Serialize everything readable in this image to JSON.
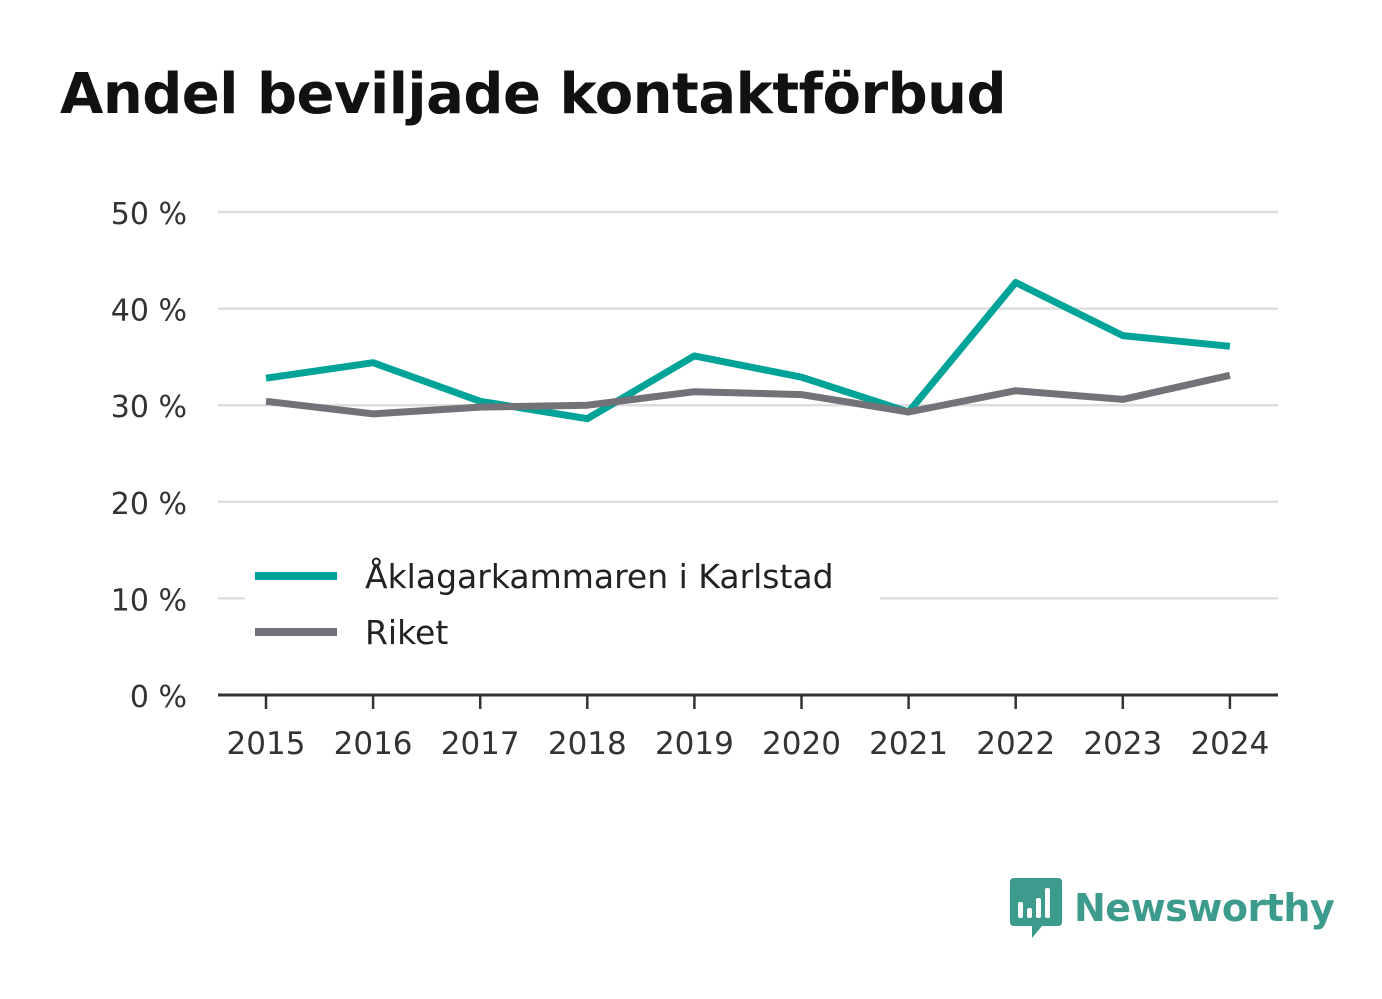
{
  "title": "Andel beviljade kontaktförbud",
  "brand": "Newsworthy",
  "colors": {
    "accent": "#00a398",
    "national": "#727278",
    "grid": "#dddddd",
    "axis": "#333333",
    "brand": "#3d9b8e"
  },
  "chart_data": {
    "type": "line",
    "title": "Andel beviljade kontaktförbud",
    "categories": [
      "2015",
      "2016",
      "2017",
      "2018",
      "2019",
      "2020",
      "2021",
      "2022",
      "2023",
      "2024"
    ],
    "series": [
      {
        "name": "Åklagarkammaren i Karlstad",
        "color": "#00a398",
        "values": [
          32.8,
          34.4,
          30.4,
          28.6,
          35.1,
          32.9,
          29.3,
          42.7,
          37.2,
          36.1
        ]
      },
      {
        "name": "Riket",
        "color": "#727278",
        "values": [
          30.4,
          29.1,
          29.8,
          30.0,
          31.4,
          31.1,
          29.3,
          31.5,
          30.6,
          33.1
        ]
      }
    ],
    "yticks": [
      "0 %",
      "10 %",
      "20 %",
      "30 %",
      "40 %",
      "50 %"
    ],
    "ylim": [
      0,
      50
    ],
    "grid": true,
    "legend": "bottom-left",
    "xlabel": "",
    "ylabel": ""
  }
}
